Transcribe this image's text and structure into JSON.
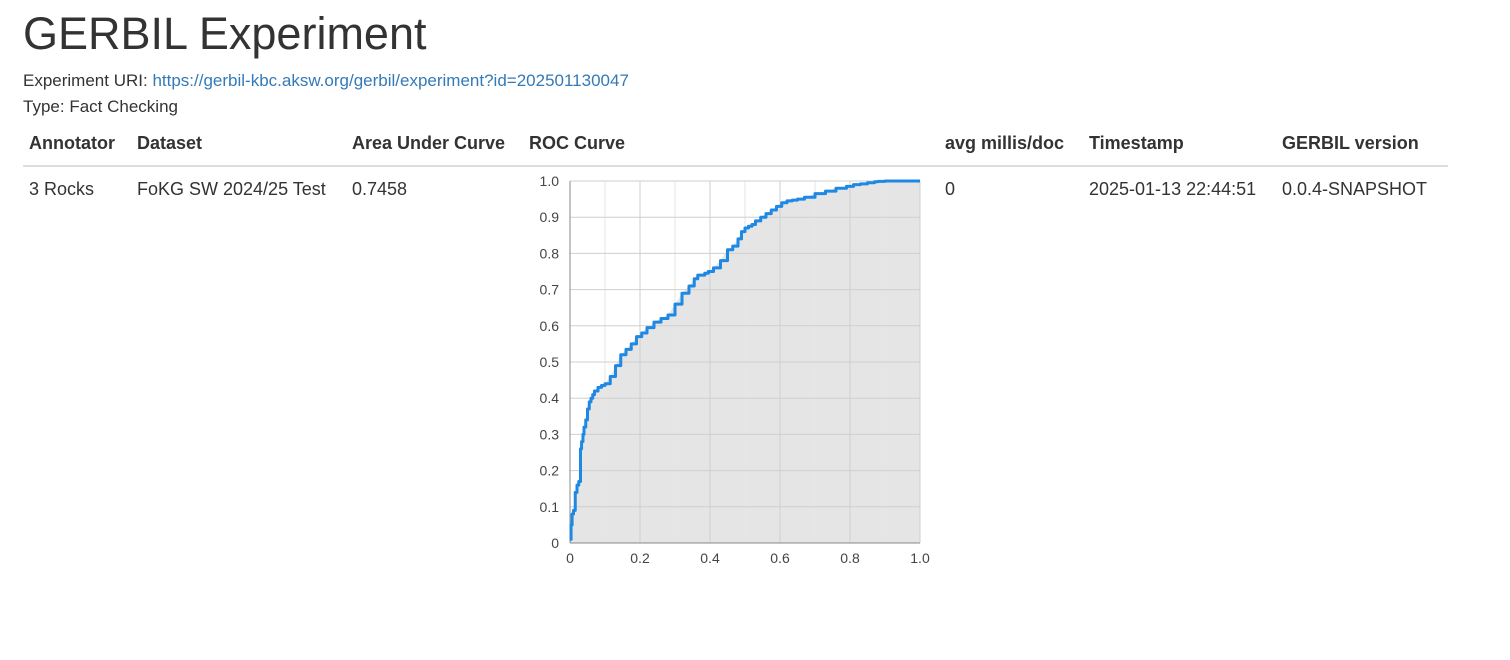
{
  "title": "GERBIL Experiment",
  "experiment": {
    "uri_label": "Experiment URI:",
    "uri": "https://gerbil-kbc.aksw.org/gerbil/experiment?id=202501130047",
    "type_label": "Type:",
    "type": "Fact Checking"
  },
  "table": {
    "headers": {
      "annotator": "Annotator",
      "dataset": "Dataset",
      "auc": "Area Under Curve",
      "roc": "ROC Curve",
      "avg": "avg millis/doc",
      "timestamp": "Timestamp",
      "version": "GERBIL version"
    },
    "rows": [
      {
        "annotator": "3 Rocks",
        "dataset": "FoKG SW 2024/25 Test",
        "auc": "0.7458",
        "avg": "0",
        "timestamp": "2025-01-13 22:44:51",
        "version": "0.0.4-SNAPSHOT"
      }
    ]
  },
  "chart_data": {
    "type": "area",
    "title": "",
    "xlabel": "",
    "ylabel": "",
    "xlim": [
      0,
      1
    ],
    "ylim": [
      0,
      1
    ],
    "x_ticks": [
      "0",
      "0.2",
      "0.4",
      "0.6",
      "0.8",
      "1.0"
    ],
    "y_ticks": [
      "0",
      "0.1",
      "0.2",
      "0.3",
      "0.4",
      "0.5",
      "0.6",
      "0.7",
      "0.8",
      "0.9",
      "1.0"
    ],
    "grid": true,
    "line_color": "#1e88e5",
    "fill_color": "#e5e5e5",
    "series": [
      {
        "x": [
          0.0,
          0.003,
          0.006,
          0.01,
          0.015,
          0.02,
          0.025,
          0.03,
          0.033,
          0.037,
          0.04,
          0.045,
          0.05,
          0.055,
          0.06,
          0.065,
          0.07,
          0.08,
          0.09,
          0.1,
          0.115,
          0.13,
          0.145,
          0.16,
          0.175,
          0.19,
          0.205,
          0.22,
          0.24,
          0.26,
          0.28,
          0.3,
          0.32,
          0.34,
          0.355,
          0.365,
          0.375,
          0.385,
          0.395,
          0.41,
          0.43,
          0.45,
          0.465,
          0.48,
          0.49,
          0.5,
          0.51,
          0.52,
          0.53,
          0.545,
          0.56,
          0.575,
          0.59,
          0.605,
          0.62,
          0.635,
          0.65,
          0.67,
          0.7,
          0.73,
          0.76,
          0.79,
          0.81,
          0.83,
          0.85,
          0.87,
          0.88,
          0.9,
          0.92,
          0.95,
          0.98,
          1.0
        ],
        "y": [
          0.01,
          0.05,
          0.08,
          0.09,
          0.14,
          0.16,
          0.17,
          0.26,
          0.28,
          0.3,
          0.32,
          0.34,
          0.37,
          0.39,
          0.4,
          0.41,
          0.42,
          0.43,
          0.435,
          0.44,
          0.46,
          0.49,
          0.52,
          0.535,
          0.55,
          0.57,
          0.58,
          0.595,
          0.61,
          0.62,
          0.63,
          0.66,
          0.69,
          0.71,
          0.73,
          0.74,
          0.74,
          0.745,
          0.75,
          0.76,
          0.78,
          0.81,
          0.82,
          0.84,
          0.86,
          0.87,
          0.875,
          0.88,
          0.89,
          0.9,
          0.91,
          0.92,
          0.93,
          0.94,
          0.945,
          0.947,
          0.95,
          0.955,
          0.965,
          0.972,
          0.98,
          0.985,
          0.99,
          0.992,
          0.995,
          0.998,
          0.999,
          1.0,
          1.0,
          1.0,
          1.0,
          1.0
        ]
      }
    ]
  }
}
